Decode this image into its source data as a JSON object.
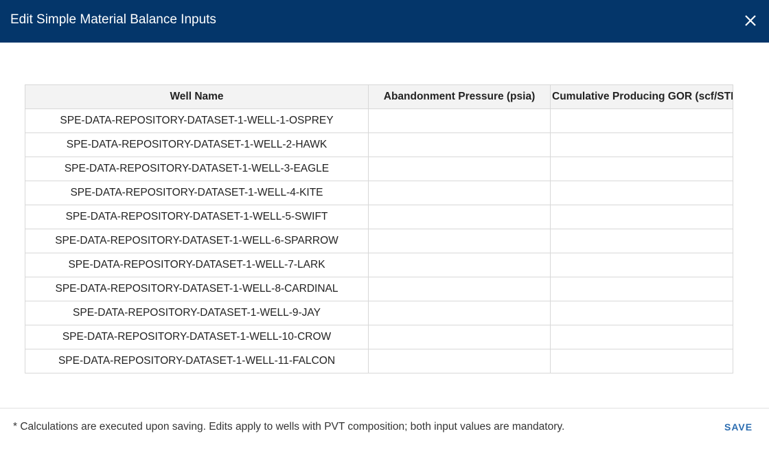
{
  "header": {
    "title": "Edit Simple Material Balance Inputs"
  },
  "table": {
    "columns": [
      "Well Name",
      "Abandonment Pressure (psia)",
      "Cumulative Producing GOR (scf/STB"
    ],
    "rows": [
      "SPE-DATA-REPOSITORY-DATASET-1-WELL-1-OSPREY",
      "SPE-DATA-REPOSITORY-DATASET-1-WELL-2-HAWK",
      "SPE-DATA-REPOSITORY-DATASET-1-WELL-3-EAGLE",
      "SPE-DATA-REPOSITORY-DATASET-1-WELL-4-KITE",
      "SPE-DATA-REPOSITORY-DATASET-1-WELL-5-SWIFT",
      "SPE-DATA-REPOSITORY-DATASET-1-WELL-6-SPARROW",
      "SPE-DATA-REPOSITORY-DATASET-1-WELL-7-LARK",
      "SPE-DATA-REPOSITORY-DATASET-1-WELL-8-CARDINAL",
      "SPE-DATA-REPOSITORY-DATASET-1-WELL-9-JAY",
      "SPE-DATA-REPOSITORY-DATASET-1-WELL-10-CROW",
      "SPE-DATA-REPOSITORY-DATASET-1-WELL-11-FALCON"
    ]
  },
  "footer": {
    "note": "* Calculations are executed upon saving. Edits apply to wells with PVT composition; both input values are mandatory.",
    "button": "SAVE"
  }
}
